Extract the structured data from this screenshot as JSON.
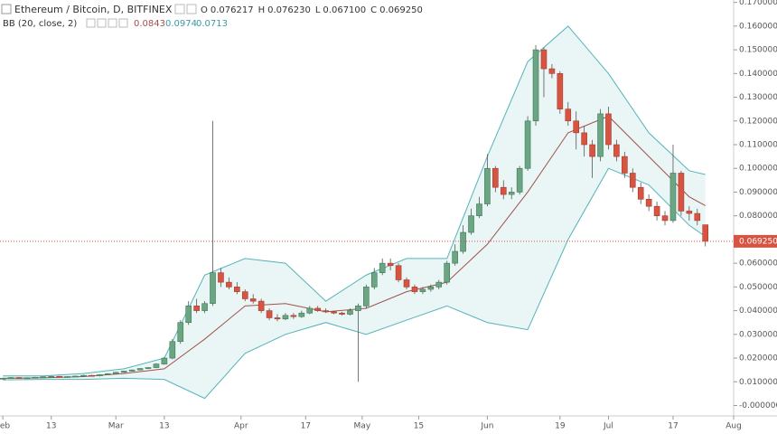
{
  "chart_data": {
    "type": "candlestick",
    "title": "Ethereum / Bitcoin, D, BITFINEX",
    "ohlc_text": [
      "O",
      "0.076217",
      "H",
      "0.076230",
      "L",
      "0.067100",
      "C",
      "0.069250"
    ],
    "indicator": "BB (20, close, 2)",
    "indicator_values": [
      "0.0843",
      "0.0974",
      "0.0713"
    ],
    "last_price_label": "0.069250",
    "up_color": "#6ba583",
    "down_color": "#d75442",
    "band_color": "#55b3ba",
    "basis_color": "#a0524e",
    "band_fill": "#eaf6f5",
    "xlim": [
      -0.7,
      181
    ],
    "ylim": [
      -0.004,
      0.171
    ],
    "xticks": [
      {
        "value": 0,
        "label": "Feb"
      },
      {
        "value": 12,
        "label": "13"
      },
      {
        "value": 28,
        "label": "Mar"
      },
      {
        "value": 40,
        "label": "13"
      },
      {
        "value": 59,
        "label": "Apr"
      },
      {
        "value": 75,
        "label": "17"
      },
      {
        "value": 89,
        "label": "May"
      },
      {
        "value": 103,
        "label": "15"
      },
      {
        "value": 120,
        "label": "Jun"
      },
      {
        "value": 138,
        "label": "19"
      },
      {
        "value": 150,
        "label": "Jul"
      },
      {
        "value": 166,
        "label": "17"
      },
      {
        "value": 181,
        "label": "Aug"
      }
    ],
    "yticks": [
      {
        "value": 0,
        "label": "-0.000000"
      },
      {
        "value": 0.01,
        "label": "0.010000"
      },
      {
        "value": 0.02,
        "label": "0.020000"
      },
      {
        "value": 0.03,
        "label": "0.030000"
      },
      {
        "value": 0.04,
        "label": "0.040000"
      },
      {
        "value": 0.05,
        "label": "0.050000"
      },
      {
        "value": 0.06,
        "label": "0.060000"
      },
      {
        "value": 0.07,
        "label": "0.070000"
      },
      {
        "value": 0.08,
        "label": "0.080000"
      },
      {
        "value": 0.09,
        "label": "0.090000"
      },
      {
        "value": 0.1,
        "label": "0.100000"
      },
      {
        "value": 0.11,
        "label": "0.110000"
      },
      {
        "value": 0.12,
        "label": "0.120000"
      },
      {
        "value": 0.13,
        "label": "0.130000"
      },
      {
        "value": 0.14,
        "label": "0.140000"
      },
      {
        "value": 0.15,
        "label": "0.150000"
      },
      {
        "value": 0.16,
        "label": "0.160000"
      },
      {
        "value": 0.17,
        "label": "0.170000"
      }
    ],
    "x": [
      0,
      2,
      4,
      6,
      8,
      10,
      12,
      14,
      16,
      18,
      20,
      22,
      24,
      26,
      28,
      30,
      32,
      34,
      36,
      38,
      40,
      42,
      44,
      46,
      48,
      50,
      52,
      54,
      56,
      58,
      60,
      62,
      64,
      66,
      68,
      70,
      72,
      74,
      76,
      78,
      80,
      82,
      84,
      86,
      88,
      90,
      92,
      94,
      96,
      98,
      100,
      102,
      104,
      106,
      108,
      110,
      112,
      114,
      116,
      118,
      120,
      122,
      124,
      126,
      128,
      130,
      132,
      134,
      136,
      138,
      140,
      142,
      144,
      146,
      148,
      150,
      152,
      154,
      156,
      158,
      160,
      162,
      164,
      166,
      168,
      170,
      172,
      174
    ],
    "open": [
      0.0112,
      0.0115,
      0.0118,
      0.0116,
      0.0117,
      0.0119,
      0.0121,
      0.0123,
      0.012,
      0.0122,
      0.0124,
      0.0127,
      0.0125,
      0.013,
      0.0134,
      0.014,
      0.0145,
      0.015,
      0.0156,
      0.016,
      0.0175,
      0.02,
      0.027,
      0.035,
      0.042,
      0.04,
      0.043,
      0.056,
      0.052,
      0.05,
      0.048,
      0.045,
      0.044,
      0.04,
      0.037,
      0.0365,
      0.038,
      0.0375,
      0.039,
      0.041,
      0.04,
      0.0395,
      0.039,
      0.0385,
      0.04,
      0.042,
      0.05,
      0.056,
      0.06,
      0.059,
      0.053,
      0.05,
      0.048,
      0.049,
      0.05,
      0.052,
      0.06,
      0.065,
      0.073,
      0.08,
      0.085,
      0.1,
      0.092,
      0.089,
      0.09,
      0.1,
      0.12,
      0.15,
      0.142,
      0.14,
      0.125,
      0.12,
      0.115,
      0.11,
      0.105,
      0.123,
      0.11,
      0.105,
      0.098,
      0.092,
      0.087,
      0.084,
      0.08,
      0.078,
      0.098,
      0.082,
      0.081,
      0.076217
    ],
    "high": [
      0.0117,
      0.012,
      0.012,
      0.0119,
      0.0121,
      0.0123,
      0.0125,
      0.0125,
      0.0124,
      0.0126,
      0.0129,
      0.0129,
      0.0132,
      0.0136,
      0.0142,
      0.0147,
      0.0152,
      0.0158,
      0.0162,
      0.0178,
      0.0205,
      0.028,
      0.036,
      0.044,
      0.045,
      0.044,
      0.12,
      0.058,
      0.054,
      0.052,
      0.049,
      0.047,
      0.045,
      0.041,
      0.0385,
      0.039,
      0.039,
      0.04,
      0.042,
      0.042,
      0.041,
      0.04,
      0.0395,
      0.041,
      0.043,
      0.051,
      0.058,
      0.062,
      0.062,
      0.06,
      0.054,
      0.051,
      0.05,
      0.051,
      0.053,
      0.061,
      0.068,
      0.076,
      0.083,
      0.088,
      0.106,
      0.101,
      0.095,
      0.092,
      0.101,
      0.122,
      0.152,
      0.151,
      0.144,
      0.141,
      0.128,
      0.124,
      0.118,
      0.112,
      0.125,
      0.126,
      0.112,
      0.107,
      0.1,
      0.094,
      0.089,
      0.086,
      0.082,
      0.11,
      0.099,
      0.084,
      0.083,
      0.07623
    ],
    "low": [
      0.011,
      0.0113,
      0.0114,
      0.0114,
      0.0115,
      0.0117,
      0.0119,
      0.0118,
      0.0118,
      0.012,
      0.0122,
      0.0123,
      0.0123,
      0.0128,
      0.0132,
      0.0138,
      0.0143,
      0.0148,
      0.0154,
      0.0158,
      0.0172,
      0.0195,
      0.026,
      0.034,
      0.039,
      0.039,
      0.042,
      0.05,
      0.049,
      0.047,
      0.044,
      0.043,
      0.039,
      0.036,
      0.0355,
      0.036,
      0.0365,
      0.037,
      0.0385,
      0.0395,
      0.039,
      0.0385,
      0.038,
      0.038,
      0.01,
      0.041,
      0.049,
      0.055,
      0.057,
      0.052,
      0.049,
      0.047,
      0.047,
      0.048,
      0.049,
      0.051,
      0.059,
      0.064,
      0.072,
      0.079,
      0.084,
      0.09,
      0.087,
      0.087,
      0.089,
      0.099,
      0.118,
      0.13,
      0.138,
      0.123,
      0.118,
      0.108,
      0.105,
      0.096,
      0.103,
      0.108,
      0.103,
      0.096,
      0.09,
      0.085,
      0.082,
      0.078,
      0.076,
      0.077,
      0.08,
      0.078,
      0.076,
      0.0671
    ],
    "close": [
      0.0115,
      0.0118,
      0.0116,
      0.0117,
      0.0119,
      0.0121,
      0.0123,
      0.012,
      0.0122,
      0.0124,
      0.0127,
      0.0125,
      0.013,
      0.0134,
      0.014,
      0.0145,
      0.015,
      0.0156,
      0.016,
      0.0175,
      0.02,
      0.027,
      0.035,
      0.042,
      0.04,
      0.043,
      0.056,
      0.052,
      0.05,
      0.048,
      0.045,
      0.044,
      0.04,
      0.037,
      0.0365,
      0.038,
      0.0375,
      0.039,
      0.041,
      0.04,
      0.0395,
      0.039,
      0.0385,
      0.04,
      0.042,
      0.05,
      0.056,
      0.06,
      0.059,
      0.053,
      0.05,
      0.048,
      0.049,
      0.05,
      0.052,
      0.06,
      0.065,
      0.073,
      0.08,
      0.085,
      0.1,
      0.092,
      0.089,
      0.09,
      0.1,
      0.12,
      0.15,
      0.142,
      0.14,
      0.125,
      0.12,
      0.115,
      0.11,
      0.105,
      0.123,
      0.11,
      0.105,
      0.098,
      0.092,
      0.087,
      0.084,
      0.08,
      0.078,
      0.098,
      0.082,
      0.081,
      0.078,
      0.06925
    ],
    "bb_x": [
      0,
      10,
      20,
      30,
      40,
      50,
      60,
      70,
      80,
      90,
      100,
      110,
      120,
      130,
      140,
      150,
      160,
      170,
      174
    ],
    "bb_upper": [
      0.0125,
      0.0125,
      0.0135,
      0.0155,
      0.02,
      0.055,
      0.062,
      0.06,
      0.044,
      0.055,
      0.062,
      0.062,
      0.105,
      0.145,
      0.16,
      0.14,
      0.115,
      0.099,
      0.0974
    ],
    "bb_middle": [
      0.0115,
      0.0117,
      0.0122,
      0.0135,
      0.0155,
      0.028,
      0.042,
      0.043,
      0.0395,
      0.041,
      0.048,
      0.052,
      0.068,
      0.09,
      0.115,
      0.122,
      0.105,
      0.088,
      0.0843
    ],
    "bb_lower": [
      0.0108,
      0.011,
      0.011,
      0.0115,
      0.011,
      0.003,
      0.022,
      0.03,
      0.035,
      0.03,
      0.036,
      0.042,
      0.035,
      0.032,
      0.07,
      0.1,
      0.093,
      0.076,
      0.0713
    ]
  }
}
